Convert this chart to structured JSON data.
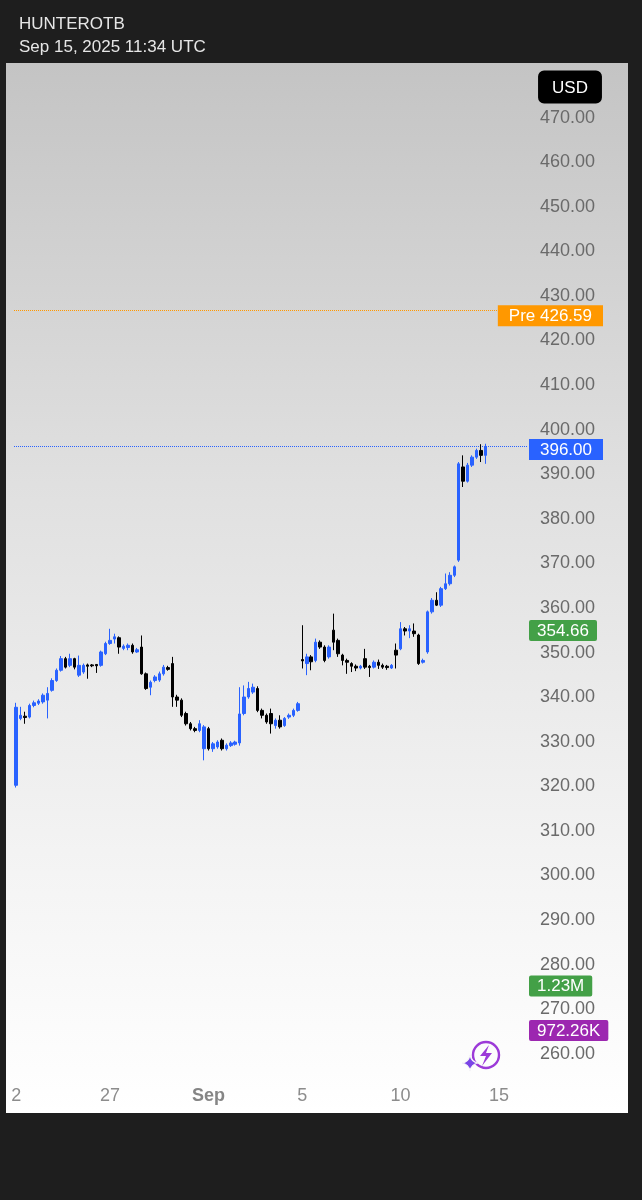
{
  "chart_data": {
    "type": "candlestick",
    "title": "HUNTEROTB",
    "subtitle": "Sep 15, 2025 11:34 UTC",
    "ylabel": "USD",
    "categories": [
      "2",
      null,
      null,
      null,
      null,
      null,
      null,
      null,
      null,
      null,
      null,
      null,
      null,
      null,
      null,
      null,
      null,
      null,
      null,
      null,
      null,
      "27",
      null,
      null,
      null,
      null,
      null,
      null,
      null,
      null,
      null,
      null,
      null,
      null,
      null,
      null,
      null,
      null,
      null,
      null,
      null,
      null,
      null,
      "Sep",
      null,
      null,
      null,
      null,
      null,
      null,
      null,
      null,
      null,
      null,
      null,
      null,
      null,
      null,
      null,
      null,
      null,
      null,
      null,
      null,
      "5",
      null,
      null,
      null,
      null,
      null,
      null,
      null,
      null,
      null,
      null,
      null,
      null,
      null,
      null,
      null,
      null,
      null,
      null,
      null,
      null,
      null,
      "10",
      null,
      null,
      null,
      null,
      null,
      null,
      null,
      null,
      null,
      null,
      null,
      null,
      null,
      null,
      null,
      null,
      null,
      null,
      null,
      null,
      null,
      "15",
      null,
      null,
      null,
      null,
      null,
      null
    ],
    "ohlc": [
      [
        320,
        338.5,
        319.5,
        337.5
      ],
      [
        335,
        337.6,
        334.6,
        335.7
      ],
      [
        335.5,
        336.5,
        333.8,
        335.2
      ],
      [
        335.3,
        338.3,
        335,
        337.9
      ],
      [
        337.9,
        339,
        337.5,
        338.5
      ],
      [
        338.4,
        339.3,
        338,
        338.9
      ],
      [
        338.7,
        340.6,
        338.3,
        340.2
      ],
      [
        339.1,
        342,
        335,
        340.6
      ],
      [
        341.3,
        344,
        341,
        343.5
      ],
      [
        343.5,
        346.2,
        343.2,
        345.8
      ],
      [
        345.8,
        349,
        345.5,
        348.4
      ],
      [
        348.4,
        348.8,
        346.2,
        346.5
      ],
      [
        346.9,
        349.5,
        346.5,
        348.4
      ],
      [
        348.4,
        348.6,
        346,
        346.5
      ],
      [
        344.7,
        349.1,
        344.3,
        346.9
      ],
      [
        345.4,
        347.3,
        345,
        346.9
      ],
      [
        347,
        347.3,
        343.9,
        346.7
      ],
      [
        347,
        347.2,
        346.5,
        346.8
      ],
      [
        347.1,
        347.2,
        345.2,
        346.8
      ],
      [
        346.9,
        350.2,
        346.6,
        349.9
      ],
      [
        349.5,
        352.2,
        349.2,
        351.8
      ],
      [
        351.8,
        355.1,
        351.5,
        352.5
      ],
      [
        352.8,
        354,
        351.8,
        353.3
      ],
      [
        353.1,
        353.4,
        349.5,
        351
      ],
      [
        350.7,
        351.6,
        350.3,
        351.2
      ],
      [
        350.9,
        351.8,
        350.3,
        351.4
      ],
      [
        351.4,
        351.8,
        349.5,
        349.9
      ],
      [
        349.9,
        350.8,
        349.7,
        350.4
      ],
      [
        351,
        353.6,
        344.8,
        345
      ],
      [
        345,
        345.3,
        341.4,
        341.7
      ],
      [
        342,
        343.5,
        340.2,
        343.1
      ],
      [
        343.5,
        344.7,
        343.1,
        344.3
      ],
      [
        343.6,
        345.5,
        343.2,
        345
      ],
      [
        345,
        347,
        344.6,
        346.5
      ],
      [
        346.4,
        346.8,
        345.7,
        346
      ],
      [
        347.3,
        348.8,
        337.6,
        339.8
      ],
      [
        339.8,
        340.3,
        337.6,
        339.1
      ],
      [
        339.1,
        339.5,
        335.3,
        335.7
      ],
      [
        336.1,
        336.5,
        333.4,
        333.8
      ],
      [
        333.8,
        334.2,
        332.3,
        332.7
      ],
      [
        332.7,
        333.1,
        331.9,
        332.3
      ],
      [
        332.3,
        334.6,
        331.9,
        333.8
      ],
      [
        328.2,
        333.5,
        325.6,
        333.1
      ],
      [
        332.7,
        333.1,
        327.8,
        328.2
      ],
      [
        328.2,
        329.7,
        327.5,
        329.3
      ],
      [
        328.6,
        330.1,
        328.2,
        329.7
      ],
      [
        330.1,
        330.5,
        327.8,
        328.2
      ],
      [
        328.2,
        329.4,
        327.8,
        329
      ],
      [
        328.9,
        329.9,
        328.6,
        329.5
      ],
      [
        329.2,
        330,
        328.9,
        329.7
      ],
      [
        329.5,
        342,
        328.9,
        336
      ],
      [
        336.1,
        342.4,
        335.7,
        339.8
      ],
      [
        339.8,
        343.2,
        339.4,
        341.7
      ],
      [
        340.9,
        342.8,
        340.5,
        342
      ],
      [
        341.7,
        342.2,
        336.4,
        336.8
      ],
      [
        336.8,
        337.2,
        335,
        335.7
      ],
      [
        335.7,
        336.1,
        333.8,
        334.2
      ],
      [
        336.1,
        337.2,
        331.6,
        333.8
      ],
      [
        333.4,
        335,
        332.7,
        334.6
      ],
      [
        334.6,
        335.7,
        332.7,
        333.1
      ],
      [
        333.4,
        335.3,
        333.1,
        335
      ],
      [
        335.3,
        336.1,
        334.9,
        335.7
      ],
      [
        335.7,
        337.2,
        335.3,
        336.8
      ],
      [
        336.8,
        338.7,
        336.5,
        338.3
      ],
      [
        348.2,
        355.9,
        346.2,
        347.9
      ],
      [
        347.3,
        349.5,
        344.7,
        348.8
      ],
      [
        348.8,
        349.2,
        345.8,
        347.7
      ],
      [
        348,
        352.9,
        347.6,
        352.1
      ],
      [
        352.1,
        352.5,
        350.6,
        351
      ],
      [
        351,
        351.4,
        347.6,
        348
      ],
      [
        348.8,
        351.4,
        348.4,
        351
      ],
      [
        354.8,
        358.5,
        350.3,
        352.1
      ],
      [
        352.5,
        352.9,
        348.8,
        349.5
      ],
      [
        349.2,
        349.5,
        346.9,
        348
      ],
      [
        348,
        348.4,
        345,
        347.6
      ],
      [
        347.3,
        347.6,
        345.4,
        346.7
      ],
      [
        346.7,
        347.1,
        345.6,
        346.3
      ],
      [
        346.3,
        347,
        346,
        346.7
      ],
      [
        348.4,
        350.6,
        346.1,
        346.5
      ],
      [
        346.7,
        347,
        344.3,
        346.4
      ],
      [
        346.5,
        348,
        346.2,
        347.6
      ],
      [
        347.6,
        348.2,
        346.1,
        346.9
      ],
      [
        346.9,
        347.3,
        346.1,
        346.5
      ],
      [
        346.7,
        347,
        345.9,
        346.4
      ],
      [
        346.3,
        347.2,
        346.1,
        346.9
      ],
      [
        350.3,
        351.8,
        346.2,
        349.2
      ],
      [
        350.6,
        356.6,
        350.3,
        355.1
      ],
      [
        355.1,
        355.5,
        353.6,
        354.6
      ],
      [
        354.6,
        355.9,
        353,
        355.1
      ],
      [
        354.6,
        356.3,
        353.3,
        354
      ],
      [
        353.7,
        354,
        347,
        347.3
      ],
      [
        347.6,
        348.4,
        347.3,
        348
      ],
      [
        349.9,
        359.2,
        349.5,
        358.9
      ],
      [
        358.9,
        362,
        358.5,
        361.5
      ],
      [
        361.5,
        363.3,
        360.2,
        360.4
      ],
      [
        360.4,
        364.5,
        360,
        364.1
      ],
      [
        364.1,
        367.5,
        363.8,
        365.2
      ],
      [
        365.2,
        367.8,
        364.8,
        367.1
      ],
      [
        367.1,
        369.3,
        366.7,
        369
      ],
      [
        370.5,
        392.5,
        370.1,
        392.1
      ],
      [
        391.4,
        394,
        386.9,
        388.2
      ],
      [
        388.2,
        392.3,
        387.9,
        391.8
      ],
      [
        391.8,
        394,
        391.4,
        393.6
      ],
      [
        393.6,
        395.5,
        393.2,
        395.1
      ],
      [
        395.1,
        396.5,
        392.5,
        394
      ],
      [
        394,
        396.6,
        392.1,
        396
      ],
      null,
      null,
      null,
      null,
      null,
      null,
      null,
      null,
      null
    ],
    "colors": [
      "#2962ff",
      "#2962ff",
      "#000000",
      "#2962ff",
      "#2962ff",
      "#2962ff",
      "#2962ff",
      "#2962ff",
      "#2962ff",
      "#2962ff",
      "#2962ff",
      "#000000",
      "#2962ff",
      "#000000",
      "#2962ff",
      "#2962ff",
      "#000000",
      "#000000",
      "#000000",
      "#2962ff",
      "#2962ff",
      "#2962ff",
      "#2962ff",
      "#000000",
      "#2962ff",
      "#2962ff",
      "#000000",
      "#2962ff",
      "#000000",
      "#000000",
      "#2962ff",
      "#2962ff",
      "#2962ff",
      "#2962ff",
      "#000000",
      "#000000",
      "#000000",
      "#000000",
      "#000000",
      "#000000",
      "#000000",
      "#2962ff",
      "#2962ff",
      "#000000",
      "#2962ff",
      "#2962ff",
      "#000000",
      "#2962ff",
      "#2962ff",
      "#2962ff",
      "#2962ff",
      "#2962ff",
      "#2962ff",
      "#2962ff",
      "#000000",
      "#000000",
      "#000000",
      "#000000",
      "#2962ff",
      "#000000",
      "#2962ff",
      "#2962ff",
      "#2962ff",
      "#2962ff",
      "#000000",
      "#2962ff",
      "#000000",
      "#2962ff",
      "#000000",
      "#000000",
      "#2962ff",
      "#000000",
      "#000000",
      "#000000",
      "#000000",
      "#000000",
      "#000000",
      "#2962ff",
      "#000000",
      "#000000",
      "#2962ff",
      "#000000",
      "#000000",
      "#000000",
      "#2962ff",
      "#000000",
      "#2962ff",
      "#000000",
      "#2962ff",
      "#000000",
      "#000000",
      "#2962ff",
      "#2962ff",
      "#2962ff",
      "#000000",
      "#2962ff",
      "#2962ff",
      "#2962ff",
      "#2962ff",
      "#2962ff",
      "#000000",
      "#2962ff",
      "#2962ff",
      "#2962ff",
      "#000000",
      "#2962ff",
      null,
      null,
      null,
      null,
      null,
      null,
      null,
      null,
      null
    ],
    "ylim": [
      246.5,
      482
    ],
    "yticks": [
      {
        "value": 260,
        "label": "260.00"
      },
      {
        "value": 270,
        "label": "270.00"
      },
      {
        "value": 280,
        "label": "280.00"
      },
      {
        "value": 290,
        "label": "290.00"
      },
      {
        "value": 300,
        "label": "300.00"
      },
      {
        "value": 310,
        "label": "310.00"
      },
      {
        "value": 320,
        "label": "320.00"
      },
      {
        "value": 330,
        "label": "330.00"
      },
      {
        "value": 340,
        "label": "340.00"
      },
      {
        "value": 350,
        "label": "350.00"
      },
      {
        "value": 360,
        "label": "360.00"
      },
      {
        "value": 370,
        "label": "370.00"
      },
      {
        "value": 380,
        "label": "380.00"
      },
      {
        "value": 390,
        "label": "390.00"
      },
      {
        "value": 400,
        "label": "400.00"
      },
      {
        "value": 410,
        "label": "410.00"
      },
      {
        "value": 420,
        "label": "420.00"
      },
      {
        "value": 430,
        "label": "430.00"
      },
      {
        "value": 440,
        "label": "440.00"
      },
      {
        "value": 450,
        "label": "450.00"
      },
      {
        "value": 460,
        "label": "460.00"
      },
      {
        "value": 470,
        "label": "470.00"
      }
    ],
    "ref_lines": [
      {
        "axis": "y",
        "value": 426.59,
        "label": "Pre 426.59",
        "color": "#ff9800",
        "line_style": "dotted"
      },
      {
        "axis": "y",
        "value": 396,
        "label": "396.00",
        "color": "#2962ff",
        "line_style": "dotted"
      }
    ],
    "annotations": [
      "354.66",
      "1.23M",
      "972.26K"
    ]
  }
}
